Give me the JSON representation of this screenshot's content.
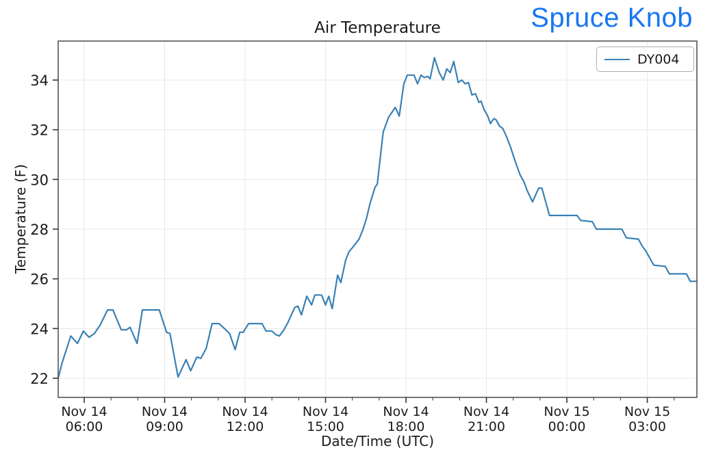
{
  "header": {
    "station_label": "Spruce Knob",
    "station_color": "#1877f2"
  },
  "chart_data": {
    "type": "line",
    "title": "Air Temperature",
    "xlabel": "Date/Time (UTC)",
    "ylabel": "Temperature (F)",
    "grid": true,
    "legend_position": "upper right",
    "line_color": "#3a80b4",
    "grid_color": "#e7e7e7",
    "spine_color": "#555555",
    "tick_color": "#333333",
    "x_unit": "hours since Nov 14 00:00 UTC",
    "xlim": [
      5.03,
      28.85
    ],
    "ylim": [
      21.3,
      35.6
    ],
    "y_ticks": [
      22,
      24,
      26,
      28,
      30,
      32,
      34
    ],
    "x_major_ticks": [
      {
        "hour": 6,
        "label_line1": "Nov 14",
        "label_line2": "06:00"
      },
      {
        "hour": 9,
        "label_line1": "Nov 14",
        "label_line2": "09:00"
      },
      {
        "hour": 12,
        "label_line1": "Nov 14",
        "label_line2": "12:00"
      },
      {
        "hour": 15,
        "label_line1": "Nov 14",
        "label_line2": "15:00"
      },
      {
        "hour": 18,
        "label_line1": "Nov 14",
        "label_line2": "18:00"
      },
      {
        "hour": 21,
        "label_line1": "Nov 14",
        "label_line2": "21:00"
      },
      {
        "hour": 24,
        "label_line1": "Nov 15",
        "label_line2": "00:00"
      },
      {
        "hour": 27,
        "label_line1": "Nov 15",
        "label_line2": "03:00"
      }
    ],
    "x_minor_ticks": [
      7,
      8,
      10,
      11,
      13,
      14,
      16,
      17,
      19,
      20,
      22,
      23,
      25,
      26,
      28
    ],
    "series": [
      {
        "name": "DY004",
        "x": [
          5.03,
          5.17,
          5.5,
          5.75,
          5.97,
          6.18,
          6.38,
          6.6,
          6.87,
          7.07,
          7.38,
          7.58,
          7.71,
          7.97,
          8.17,
          8.8,
          9.07,
          9.2,
          9.5,
          9.8,
          9.97,
          10.2,
          10.35,
          10.55,
          10.77,
          11.03,
          11.28,
          11.42,
          11.55,
          11.63,
          11.8,
          11.93,
          12.13,
          12.63,
          12.78,
          13.0,
          13.15,
          13.28,
          13.45,
          13.6,
          13.85,
          13.97,
          14.1,
          14.3,
          14.48,
          14.6,
          14.85,
          15.0,
          15.12,
          15.25,
          15.45,
          15.57,
          15.75,
          15.88,
          16.0,
          16.25,
          16.4,
          16.53,
          16.65,
          16.85,
          16.93,
          17.15,
          17.35,
          17.6,
          17.75,
          17.92,
          18.05,
          18.3,
          18.43,
          18.56,
          18.68,
          18.81,
          18.9,
          19.06,
          19.24,
          19.39,
          19.52,
          19.65,
          19.78,
          19.95,
          20.08,
          20.21,
          20.33,
          20.46,
          20.59,
          20.72,
          20.8,
          20.92,
          21.05,
          21.15,
          21.28,
          21.36,
          21.49,
          21.61,
          21.74,
          21.9,
          22.05,
          22.25,
          22.4,
          22.52,
          22.72,
          22.95,
          23.07,
          23.35,
          24.38,
          24.52,
          24.95,
          25.1,
          26.05,
          26.22,
          26.67,
          26.82,
          26.93,
          27.24,
          27.67,
          27.82,
          28.46,
          28.6,
          28.85
        ],
        "y": [
          22.0,
          22.6,
          23.7,
          23.4,
          23.9,
          23.65,
          23.8,
          24.15,
          24.75,
          24.75,
          23.95,
          23.95,
          24.05,
          23.4,
          24.75,
          24.75,
          23.85,
          23.8,
          22.05,
          22.75,
          22.3,
          22.85,
          22.8,
          23.2,
          24.2,
          24.2,
          23.95,
          23.8,
          23.4,
          23.15,
          23.85,
          23.85,
          24.2,
          24.2,
          23.9,
          23.9,
          23.75,
          23.7,
          23.95,
          24.25,
          24.85,
          24.9,
          24.55,
          25.3,
          24.95,
          25.35,
          25.35,
          24.95,
          25.3,
          24.8,
          26.15,
          25.85,
          26.75,
          27.1,
          27.25,
          27.6,
          28.0,
          28.45,
          29.0,
          29.7,
          29.8,
          31.9,
          32.5,
          32.9,
          32.55,
          33.85,
          34.2,
          34.2,
          33.85,
          34.2,
          34.1,
          34.15,
          34.05,
          34.9,
          34.3,
          34.0,
          34.45,
          34.3,
          34.75,
          33.9,
          34.0,
          33.85,
          33.9,
          33.4,
          33.45,
          33.1,
          33.15,
          32.8,
          32.55,
          32.25,
          32.45,
          32.4,
          32.15,
          32.05,
          31.75,
          31.3,
          30.8,
          30.2,
          29.9,
          29.55,
          29.1,
          29.65,
          29.65,
          28.55,
          28.55,
          28.35,
          28.3,
          28.0,
          28.0,
          27.65,
          27.6,
          27.3,
          27.15,
          26.55,
          26.5,
          26.2,
          26.2,
          25.9,
          25.9
        ]
      }
    ]
  }
}
